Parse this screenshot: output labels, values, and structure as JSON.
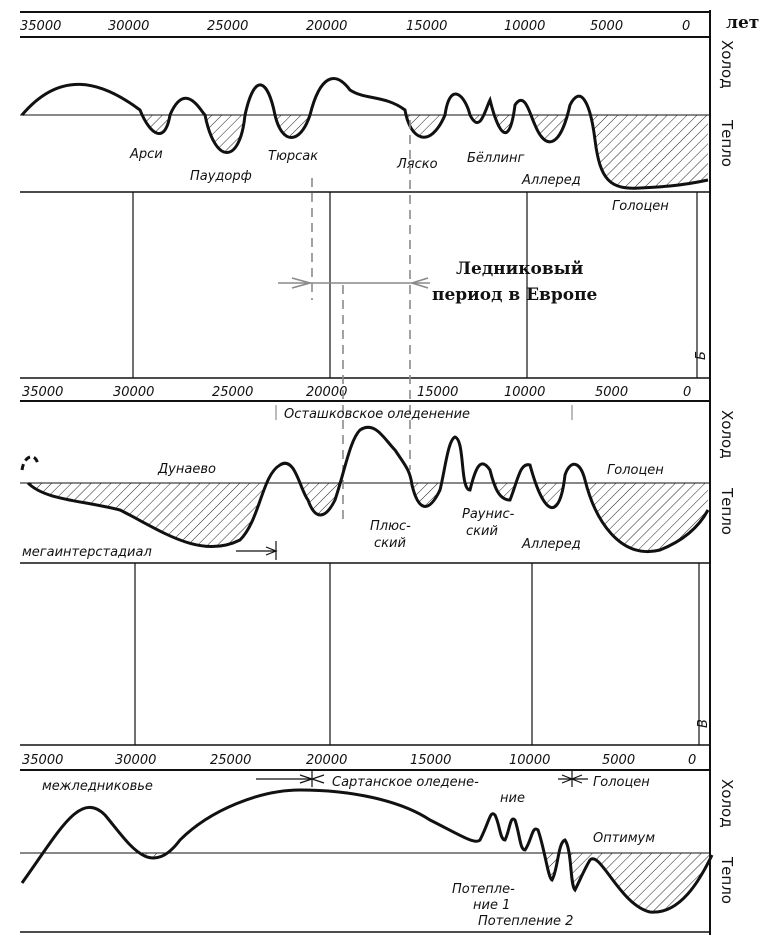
{
  "unit": "лет",
  "ticks": [
    "35000",
    "30000",
    "25000",
    "20000",
    "15000",
    "10000",
    "5000",
    "0"
  ],
  "side_labels": {
    "cold": "Холод",
    "warm": "Тепло"
  },
  "panel_letters": {
    "b": "Б",
    "v": "В"
  },
  "europe_note": {
    "line1": "Ледниковый",
    "line2": "период в Европе"
  },
  "panel_a": {
    "labels": [
      "Арси",
      "Паудорф",
      "Тюрсак",
      "Ляско",
      "Бёллинг",
      "Аллеред",
      "Голоцен"
    ]
  },
  "panel_b": {
    "stage": "Осташковское оледенение",
    "labels": [
      "Дунаево",
      "Голоцен",
      "мегаинтерстадиал",
      "Плюс-",
      "ский",
      "Раунис-",
      "ский",
      "Аллеред"
    ]
  },
  "panel_c": {
    "interglacial": "межледниковье",
    "stage1": "Сартанское оледене-",
    "stage2": "ние",
    "holocene": "Голоцен",
    "optimum": "Оптимум",
    "warming1a": "Потепле-",
    "warming1b": "ние 1",
    "warming2": "Потепление 2"
  },
  "colors": {
    "ink": "#111111",
    "dash": "#8a8a8a",
    "bracket": "#777777"
  }
}
